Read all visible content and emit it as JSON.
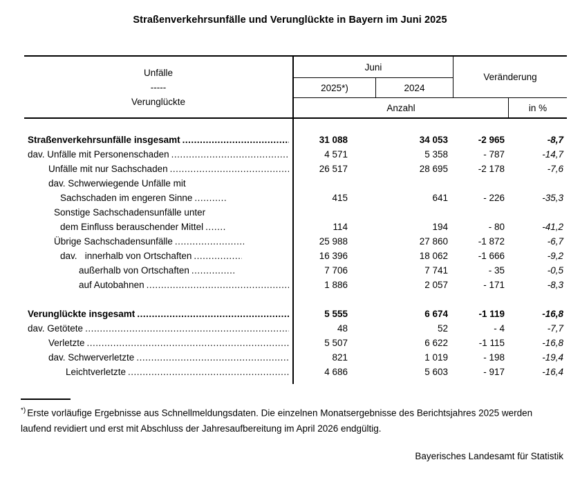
{
  "title": "Straßenverkehrsunfälle und Verunglückte in Bayern im Juni 2025",
  "table": {
    "stub_header": {
      "line1": "Unfälle",
      "line2": "-----",
      "line3": "Verunglückte"
    },
    "col_headers": {
      "month": "Juni",
      "year_2025": "2025*)",
      "year_2024": "2024",
      "change": "Veränderung",
      "count_unit": "Anzahl",
      "percent_unit": "in %"
    },
    "leader": "......................................................................................................................................",
    "rows": [
      {
        "label": "Straßenverkehrsunfälle insgesamt",
        "indent": 5,
        "bold": true,
        "dots": true,
        "v2025": "31 088",
        "v2024": "34 053",
        "diff": "-2 965",
        "pct": "-8,7"
      },
      {
        "label": "dav. Unfälle mit Personenschaden",
        "indent": 5,
        "bold": false,
        "dots": true,
        "v2025": "4 571",
        "v2024": "5 358",
        "diff": "- 787",
        "pct": "-14,7"
      },
      {
        "label": "Unfälle mit nur Sachschaden",
        "indent": 35,
        "bold": false,
        "dots": true,
        "v2025": "26 517",
        "v2024": "28 695",
        "diff": "-2 178",
        "pct": "-7,6"
      },
      {
        "label": "dav. Schwerwiegende Unfälle mit",
        "indent": 35,
        "bold": false,
        "dots": false,
        "v2025": "",
        "v2024": "",
        "diff": "",
        "pct": ""
      },
      {
        "label": "Sachschaden im engeren Sinne",
        "indent": 52,
        "bold": false,
        "dots": true,
        "leader_max": 48,
        "v2025": "415",
        "v2024": "641",
        "diff": "- 226",
        "pct": "-35,3"
      },
      {
        "label": "Sonstige Sachschadensunfälle unter",
        "indent": 43,
        "bold": false,
        "dots": false,
        "v2025": "",
        "v2024": "",
        "diff": "",
        "pct": ""
      },
      {
        "label": "dem Einfluss berauschender Mittel",
        "indent": 52,
        "bold": false,
        "dots": true,
        "leader_max": 30,
        "v2025": "114",
        "v2024": "194",
        "diff": "- 80",
        "pct": "-41,2"
      },
      {
        "label": "Übrige Sachschadensunfälle",
        "indent": 43,
        "bold": false,
        "dots": true,
        "leader_max": 100,
        "v2025": "25 988",
        "v2024": "27 860",
        "diff": "-1 872",
        "pct": "-6,7"
      },
      {
        "label": "dav.   innerhalb von Ortschaften",
        "indent": 52,
        "bold": false,
        "dots": true,
        "leader_max": 70,
        "v2025": "16 396",
        "v2024": "18 062",
        "diff": "-1 666",
        "pct": "-9,2"
      },
      {
        "label": "außerhalb von Ortschaften",
        "indent": 79,
        "bold": false,
        "dots": true,
        "leader_max": 62,
        "v2025": "7 706",
        "v2024": "7 741",
        "diff": "- 35",
        "pct": "-0,5"
      },
      {
        "label": "auf Autobahnen",
        "indent": 79,
        "bold": false,
        "dots": true,
        "v2025": "1 886",
        "v2024": "2 057",
        "diff": "- 171",
        "pct": "-8,3"
      },
      {
        "label": "Verunglückte insgesamt",
        "indent": 5,
        "bold": true,
        "dots": true,
        "section_break": true,
        "v2025": "5 555",
        "v2024": "6 674",
        "diff": "-1 119",
        "pct": "-16,8"
      },
      {
        "label": "dav. Getötete",
        "indent": 5,
        "bold": false,
        "dots": true,
        "v2025": "48",
        "v2024": "52",
        "diff": "- 4",
        "pct": "-7,7"
      },
      {
        "label": "Verletzte",
        "indent": 35,
        "bold": false,
        "dots": true,
        "v2025": "5 507",
        "v2024": "6 622",
        "diff": "-1 115",
        "pct": "-16,8"
      },
      {
        "label": "dav. Schwerverletzte",
        "indent": 35,
        "bold": false,
        "dots": true,
        "v2025": "821",
        "v2024": "1 019",
        "diff": "- 198",
        "pct": "-19,4"
      },
      {
        "label": "Leichtverletzte",
        "indent": 60,
        "bold": false,
        "dots": true,
        "v2025": "4 686",
        "v2024": "5 603",
        "diff": "- 917",
        "pct": "-16,4"
      }
    ]
  },
  "footnote": {
    "marker": "*)",
    "text": "Erste vorläufige Ergebnisse aus Schnellmeldungsdaten. Die einzelnen Monatsergebnisse des Berichtsjahres 2025 werden laufend revidiert und erst mit Abschluss der Jahresaufbereitung im April 2026 endgültig."
  },
  "footer": "Bayerisches Landesamt für Statistik"
}
